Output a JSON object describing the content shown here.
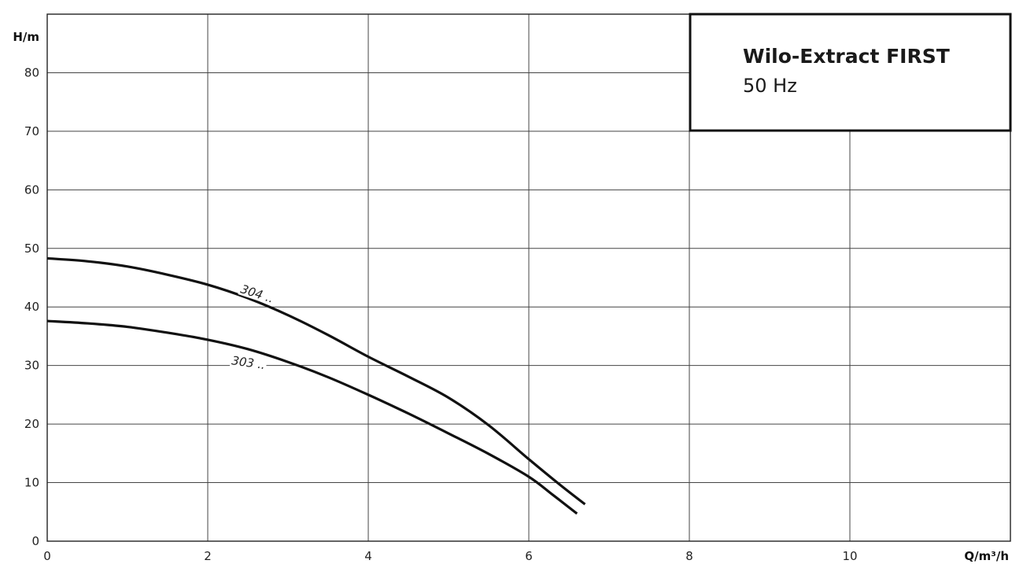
{
  "chart_data": {
    "type": "line",
    "title": "Wilo-Extract FIRST",
    "subtitle": "50 Hz",
    "xlabel": "Q/m³/h",
    "ylabel": "H/m",
    "xlim": [
      0,
      12
    ],
    "ylim": [
      0,
      90
    ],
    "x_ticks": [
      0,
      2,
      4,
      6,
      8,
      10
    ],
    "y_ticks": [
      0,
      10,
      20,
      30,
      40,
      50,
      60,
      70,
      80
    ],
    "grid": true,
    "series": [
      {
        "name": "304 ..",
        "x": [
          0,
          0.5,
          1,
          1.5,
          2,
          2.5,
          3,
          3.5,
          4,
          4.5,
          5,
          5.5,
          6,
          6.4,
          6.7
        ],
        "y": [
          48.3,
          47.8,
          46.9,
          45.5,
          43.8,
          41.5,
          38.6,
          35.2,
          31.5,
          28.1,
          24.5,
          19.8,
          14.0,
          9.5,
          6.3
        ]
      },
      {
        "name": "303 ..",
        "x": [
          0,
          0.5,
          1,
          1.5,
          2,
          2.5,
          3,
          3.5,
          4,
          4.5,
          5,
          5.5,
          6,
          6.3,
          6.6
        ],
        "y": [
          37.6,
          37.2,
          36.6,
          35.6,
          34.4,
          32.8,
          30.6,
          28.0,
          25.0,
          21.8,
          18.4,
          14.9,
          11.0,
          7.9,
          4.7
        ]
      }
    ]
  }
}
